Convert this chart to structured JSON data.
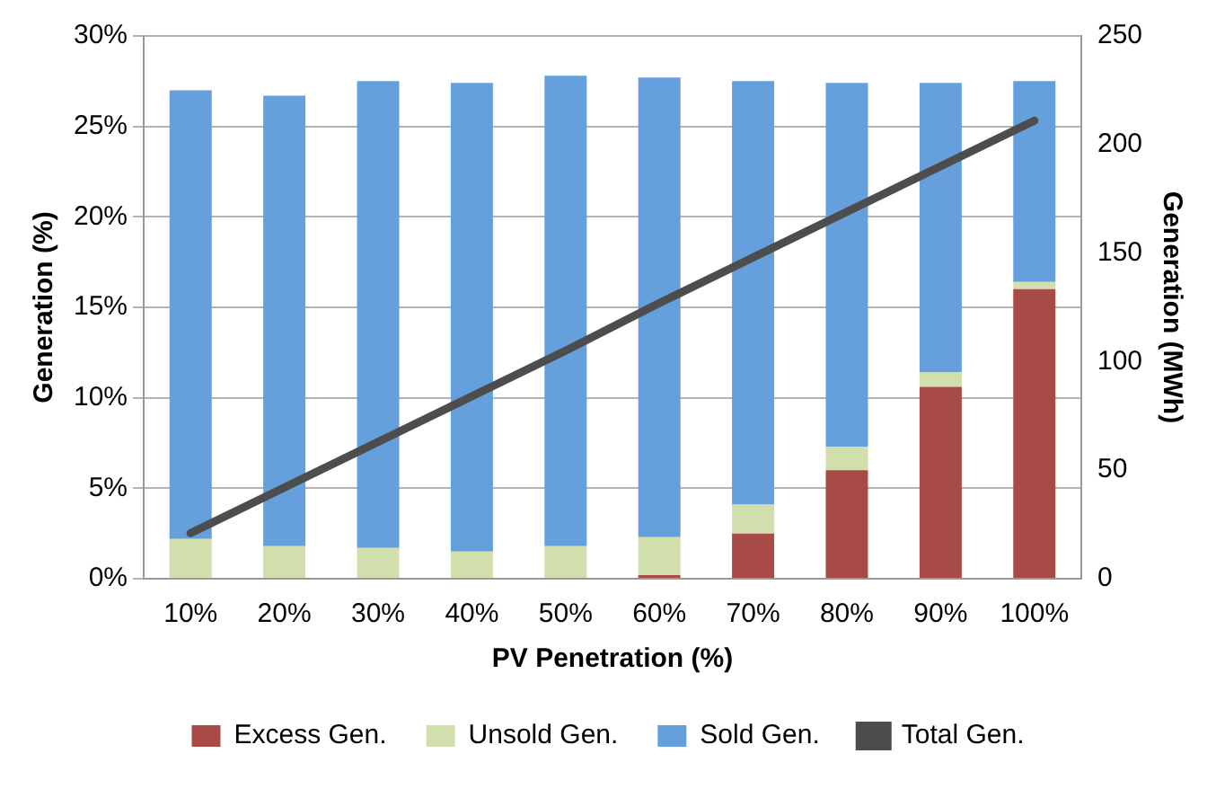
{
  "chart_data": {
    "type": "bar",
    "stacked": true,
    "xlabel": "PV Penetration (%)",
    "ylabel": "Generation (%)",
    "y2label": "Generation (MWh)",
    "categories": [
      "10%",
      "20%",
      "30%",
      "40%",
      "50%",
      "60%",
      "70%",
      "80%",
      "90%",
      "100%"
    ],
    "series": [
      {
        "name": "Excess Gen.",
        "color": "#a84a45",
        "values": [
          0,
          0,
          0,
          0,
          0,
          0.2,
          2.5,
          6.0,
          10.6,
          16.0
        ]
      },
      {
        "name": "Unsold Gen.",
        "color": "#d0dfac",
        "values": [
          2.2,
          1.8,
          1.7,
          1.5,
          1.8,
          2.1,
          1.6,
          1.3,
          0.8,
          0.4
        ]
      },
      {
        "name": "Sold Gen.",
        "color": "#659fdc",
        "values": [
          24.8,
          24.9,
          25.8,
          25.9,
          26.0,
          25.4,
          23.4,
          20.1,
          16.0,
          11.1
        ]
      },
      {
        "name": "Total Gen.",
        "type": "line",
        "axis": "y2",
        "color": "#4d4d4d",
        "marker": "none",
        "values": [
          21,
          42,
          63,
          84,
          105,
          127,
          148,
          169,
          190,
          211
        ]
      }
    ],
    "ylim": [
      0,
      30
    ],
    "yticks": [
      {
        "value": 0,
        "label": "0%"
      },
      {
        "value": 5,
        "label": "5%"
      },
      {
        "value": 10,
        "label": "10%"
      },
      {
        "value": 15,
        "label": "15%"
      },
      {
        "value": 20,
        "label": "20%"
      },
      {
        "value": 25,
        "label": "25%"
      },
      {
        "value": 30,
        "label": "30%"
      }
    ],
    "y2lim": [
      0,
      250
    ],
    "y2ticks": [
      0,
      50,
      100,
      150,
      200,
      250
    ],
    "grid": "y",
    "legend": "bottom"
  }
}
